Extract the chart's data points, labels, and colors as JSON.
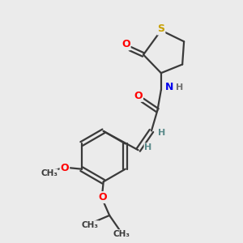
{
  "background_color": "#ebebeb",
  "bond_color": "#3a3a3a",
  "atom_colors": {
    "S": "#c8a000",
    "O": "#ff0000",
    "N": "#0000ee",
    "C": "#3a3a3a",
    "H": "#707070"
  },
  "figsize": [
    3.0,
    3.0
  ],
  "dpi": 100,
  "xlim": [
    0,
    10
  ],
  "ylim": [
    0,
    10
  ]
}
